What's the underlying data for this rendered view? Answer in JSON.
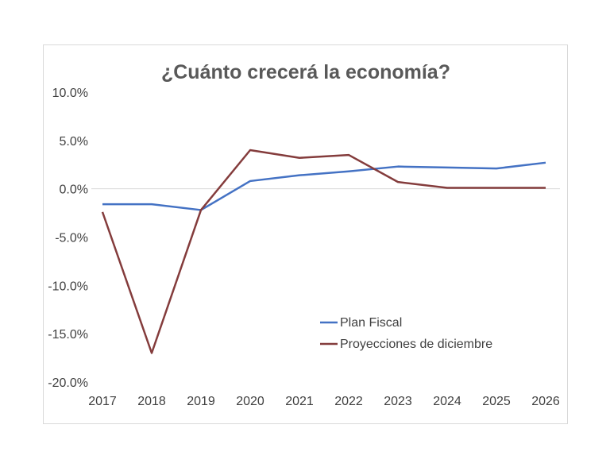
{
  "chart_data": {
    "type": "line",
    "title": "¿Cuánto crecerá la economía?",
    "xlabel": "",
    "ylabel": "",
    "categories": [
      "2017",
      "2018",
      "2019",
      "2020",
      "2021",
      "2022",
      "2023",
      "2024",
      "2025",
      "2026"
    ],
    "y_ticks": [
      "10.0%",
      "5.0%",
      "0.0%",
      "-5.0%",
      "-10.0%",
      "-15.0%",
      "-20.0%"
    ],
    "y_tick_values": [
      10,
      5,
      0,
      -5,
      -10,
      -15,
      -20
    ],
    "ylim": [
      -20,
      10
    ],
    "grid": "zero-line only",
    "legend_position": "lower-right",
    "series": [
      {
        "name": "Plan Fiscal",
        "color": "#4472c4",
        "values": [
          -1.6,
          -1.6,
          -2.2,
          0.8,
          1.4,
          1.8,
          2.3,
          2.2,
          2.1,
          2.7
        ]
      },
      {
        "name": "Proyecciones de diciembre",
        "color": "#843c3c",
        "values": [
          -2.4,
          -17.0,
          -2.2,
          4.0,
          3.2,
          3.5,
          0.7,
          0.1,
          0.1,
          0.1
        ]
      }
    ]
  }
}
